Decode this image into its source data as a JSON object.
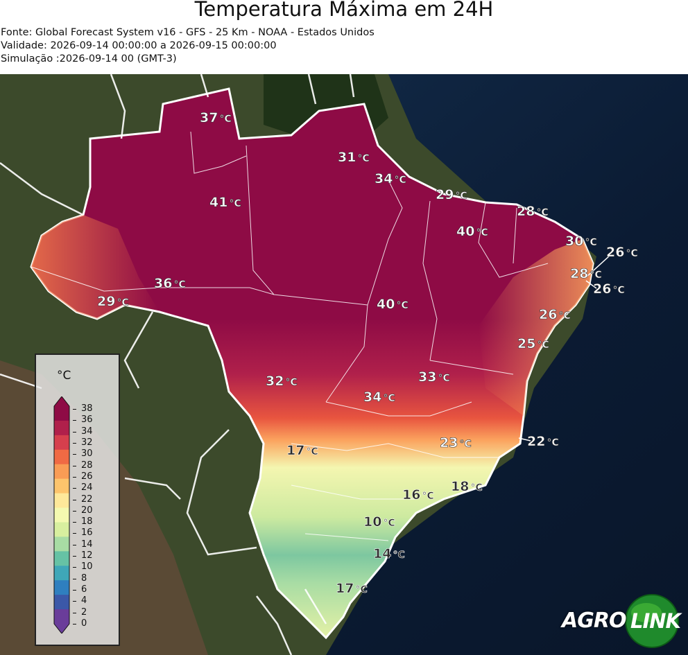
{
  "header": {
    "title": "Temperatura Máxima em 24H",
    "source": "Fonte: Global Forecast System v16 - GFS - 25 Km - NOAA - Estados Unidos",
    "validity": "Validade: 2026-09-14 00:00:00 a 2026-09-15 00:00:00",
    "simulation": "Simulação :2026-09-14 00 (GMT-3)"
  },
  "legend": {
    "unit": "°C",
    "ticks": [
      "38",
      "36",
      "34",
      "32",
      "30",
      "28",
      "26",
      "24",
      "22",
      "20",
      "18",
      "16",
      "14",
      "12",
      "10",
      "8",
      "6",
      "4",
      "2",
      "0"
    ],
    "colors": [
      "#6a3d9a",
      "#3b58a8",
      "#2f7fbf",
      "#3fa7b8",
      "#66c2a5",
      "#a8dca4",
      "#d8ef9f",
      "#f4f9b0",
      "#fee89a",
      "#fdc46c",
      "#f99c55",
      "#f06a44",
      "#d63f4d",
      "#b0204b",
      "#8e0b45"
    ]
  },
  "temperatures": [
    {
      "value": "37",
      "unit": "°C"
    },
    {
      "value": "31",
      "unit": "°C"
    },
    {
      "value": "34",
      "unit": "°C"
    },
    {
      "value": "29",
      "unit": "°C"
    },
    {
      "value": "41",
      "unit": "°C"
    },
    {
      "value": "28",
      "unit": "°C"
    },
    {
      "value": "40",
      "unit": "°C"
    },
    {
      "value": "30",
      "unit": "°C"
    },
    {
      "value": "26",
      "unit": "°C"
    },
    {
      "value": "28",
      "unit": "°C"
    },
    {
      "value": "26",
      "unit": "°C"
    },
    {
      "value": "36",
      "unit": "°C"
    },
    {
      "value": "29",
      "unit": "°C"
    },
    {
      "value": "40",
      "unit": "°C"
    },
    {
      "value": "26",
      "unit": "°C"
    },
    {
      "value": "25",
      "unit": "°C"
    },
    {
      "value": "33",
      "unit": "°C"
    },
    {
      "value": "32",
      "unit": "°C"
    },
    {
      "value": "34",
      "unit": "°C"
    },
    {
      "value": "23",
      "unit": "°C"
    },
    {
      "value": "22",
      "unit": "°C"
    },
    {
      "value": "17",
      "unit": "°C"
    },
    {
      "value": "18",
      "unit": "°C"
    },
    {
      "value": "16",
      "unit": "°C"
    },
    {
      "value": "10",
      "unit": "°C"
    },
    {
      "value": "14",
      "unit": "°C"
    },
    {
      "value": "17",
      "unit": "°C"
    }
  ],
  "logo": {
    "part1": "AGRO",
    "part2": "LINK"
  },
  "colors": {
    "ocean": "#0e2238",
    "land": "#3f4a2c",
    "hot": "#8e0b45",
    "cold": "#66c2a5",
    "border": "#ffffff"
  }
}
